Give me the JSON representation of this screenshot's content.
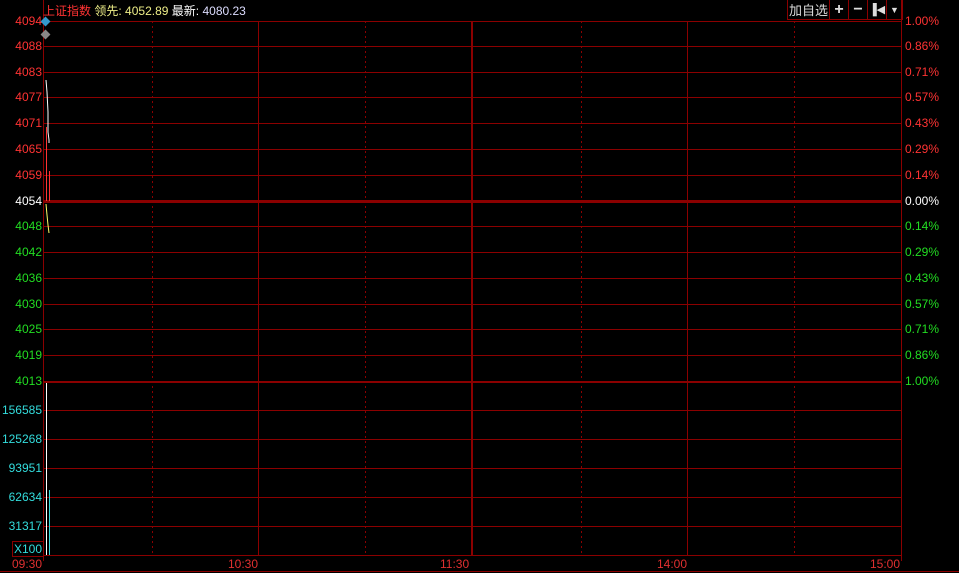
{
  "header": {
    "index_name": "上证指数",
    "lead_label": "领先:",
    "lead_value": "4052.89",
    "latest_label": "最新:",
    "latest_value": "4080.23"
  },
  "toolbar": {
    "add_watchlist": "加自选",
    "zoom_in": "+",
    "zoom_out": "−",
    "back_icon": "step-back-icon",
    "menu_icon": "chevron-down-icon"
  },
  "price_axis": [
    {
      "price": "4094",
      "pct": "1.00%",
      "c": "#ff3333"
    },
    {
      "price": "4088",
      "pct": "0.86%",
      "c": "#ff3333"
    },
    {
      "price": "4083",
      "pct": "0.71%",
      "c": "#ff3333"
    },
    {
      "price": "4077",
      "pct": "0.57%",
      "c": "#ff3333"
    },
    {
      "price": "4071",
      "pct": "0.43%",
      "c": "#ff3333"
    },
    {
      "price": "4065",
      "pct": "0.29%",
      "c": "#ff3333"
    },
    {
      "price": "4059",
      "pct": "0.14%",
      "c": "#ff3333"
    },
    {
      "price": "4054",
      "pct": "0.00%",
      "c": "#ffffff"
    },
    {
      "price": "4048",
      "pct": "0.14%",
      "c": "#22dd22"
    },
    {
      "price": "4042",
      "pct": "0.29%",
      "c": "#22dd22"
    },
    {
      "price": "4036",
      "pct": "0.43%",
      "c": "#22dd22"
    },
    {
      "price": "4030",
      "pct": "0.57%",
      "c": "#22dd22"
    },
    {
      "price": "4025",
      "pct": "0.71%",
      "c": "#22dd22"
    },
    {
      "price": "4019",
      "pct": "0.86%",
      "c": "#22dd22"
    },
    {
      "price": "4013",
      "pct": "1.00%",
      "c": "#22dd22"
    }
  ],
  "volume_axis": [
    "156585",
    "125268",
    "93951",
    "62634",
    "31317"
  ],
  "volume_unit": "X100",
  "time_axis": [
    "09:30",
    "10:30",
    "11:30",
    "14:00",
    "15:00"
  ],
  "colors": {
    "grid": "#8b0000",
    "up": "#ff3333",
    "down": "#22dd22",
    "volume": "#33dddd",
    "price_line": "#ffffff",
    "lead_line": "#ffff66"
  }
}
